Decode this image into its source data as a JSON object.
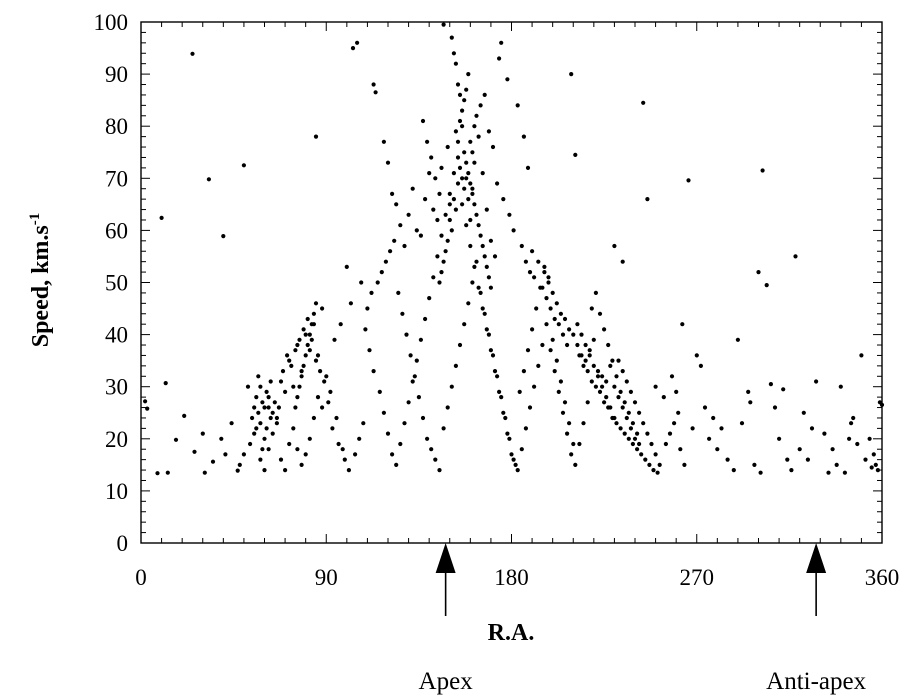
{
  "chart_data": {
    "type": "scatter",
    "xlabel": "R.A.",
    "ylabel": "Speed, km.s",
    "ylabel_superscript": "-1",
    "xlim": [
      0,
      360
    ],
    "ylim": [
      0,
      100
    ],
    "xticks": [
      0,
      90,
      180,
      270,
      360
    ],
    "yticks": [
      0,
      10,
      20,
      30,
      40,
      50,
      60,
      70,
      80,
      90,
      100
    ],
    "grid": false,
    "annotations": [
      {
        "label": "Apex",
        "x": 148
      },
      {
        "label": "Anti-apex",
        "x": 328
      }
    ],
    "points": [
      [
        25,
        93.9
      ],
      [
        10,
        62.4
      ],
      [
        12,
        30.7
      ],
      [
        33,
        69.8
      ],
      [
        40,
        58.9
      ],
      [
        50,
        72.5
      ],
      [
        2,
        27.2
      ],
      [
        3,
        25.8
      ],
      [
        8,
        13.4
      ],
      [
        13,
        13.5
      ],
      [
        17,
        19.8
      ],
      [
        21,
        24.4
      ],
      [
        26,
        17.5
      ],
      [
        30,
        21
      ],
      [
        31,
        13.5
      ],
      [
        35,
        15.6
      ],
      [
        39,
        20
      ],
      [
        41,
        17
      ],
      [
        44,
        23
      ],
      [
        47,
        13.9
      ],
      [
        52,
        30
      ],
      [
        55,
        21
      ],
      [
        58,
        23
      ],
      [
        60,
        26
      ],
      [
        62,
        28
      ],
      [
        64,
        25
      ],
      [
        66,
        24
      ],
      [
        68,
        31
      ],
      [
        70,
        29
      ],
      [
        72,
        35
      ],
      [
        74,
        30
      ],
      [
        76,
        38
      ],
      [
        78,
        33
      ],
      [
        80,
        40
      ],
      [
        82,
        37
      ],
      [
        84,
        42
      ],
      [
        86,
        36
      ],
      [
        88,
        45
      ],
      [
        90,
        32
      ],
      [
        92,
        29
      ],
      [
        95,
        24
      ],
      [
        98,
        18
      ],
      [
        100,
        53
      ],
      [
        103,
        95
      ],
      [
        105,
        96
      ],
      [
        85,
        78
      ],
      [
        113,
        88
      ],
      [
        114,
        86.5
      ],
      [
        118,
        77
      ],
      [
        120,
        73
      ],
      [
        122,
        67
      ],
      [
        124,
        65
      ],
      [
        126,
        61
      ],
      [
        128,
        57
      ],
      [
        130,
        63
      ],
      [
        132,
        68
      ],
      [
        134,
        60
      ],
      [
        136,
        59
      ],
      [
        138,
        66
      ],
      [
        140,
        71
      ],
      [
        142,
        64
      ],
      [
        144,
        62
      ],
      [
        146,
        72
      ],
      [
        147,
        99.5
      ],
      [
        150,
        65
      ],
      [
        151,
        97
      ],
      [
        152,
        94
      ],
      [
        153,
        92
      ],
      [
        154,
        88
      ],
      [
        155,
        86
      ],
      [
        156,
        80
      ],
      [
        157,
        75
      ],
      [
        158,
        70
      ],
      [
        159,
        66
      ],
      [
        160,
        62
      ],
      [
        161,
        68
      ],
      [
        162,
        73
      ],
      [
        164,
        78
      ],
      [
        166,
        71
      ],
      [
        168,
        64
      ],
      [
        170,
        58
      ],
      [
        172,
        55
      ],
      [
        174,
        93
      ],
      [
        175,
        96
      ],
      [
        178,
        89
      ],
      [
        183,
        84
      ],
      [
        186,
        78
      ],
      [
        188,
        72
      ],
      [
        190,
        56
      ],
      [
        193,
        54
      ],
      [
        196,
        52
      ],
      [
        198,
        50
      ],
      [
        200,
        48
      ],
      [
        202,
        46
      ],
      [
        204,
        44
      ],
      [
        206,
        43
      ],
      [
        208,
        41
      ],
      [
        210,
        40
      ],
      [
        212,
        38
      ],
      [
        214,
        36
      ],
      [
        216,
        35
      ],
      [
        218,
        37
      ],
      [
        220,
        39
      ],
      [
        222,
        33
      ],
      [
        224,
        32
      ],
      [
        226,
        31
      ],
      [
        228,
        34
      ],
      [
        230,
        30
      ],
      [
        232,
        28
      ],
      [
        234,
        26
      ],
      [
        236,
        24
      ],
      [
        238,
        22
      ],
      [
        240,
        20
      ],
      [
        242,
        19
      ],
      [
        244,
        84.5
      ],
      [
        246,
        66
      ],
      [
        211,
        74.5
      ],
      [
        209,
        90
      ],
      [
        230,
        57
      ],
      [
        234,
        54
      ],
      [
        250,
        30
      ],
      [
        254,
        28
      ],
      [
        258,
        32
      ],
      [
        260,
        29
      ],
      [
        263,
        42
      ],
      [
        266,
        69.6
      ],
      [
        270,
        36
      ],
      [
        272,
        34
      ],
      [
        276,
        20
      ],
      [
        280,
        18
      ],
      [
        285,
        16
      ],
      [
        290,
        39
      ],
      [
        295,
        29
      ],
      [
        300,
        52
      ],
      [
        302,
        71.5
      ],
      [
        304,
        49.5
      ],
      [
        306,
        30.5
      ],
      [
        308,
        26
      ],
      [
        312,
        29.5
      ],
      [
        318,
        55
      ],
      [
        320,
        18
      ],
      [
        324,
        16
      ],
      [
        328,
        31
      ],
      [
        332,
        21
      ],
      [
        336,
        18
      ],
      [
        340,
        30
      ],
      [
        342,
        13.5
      ],
      [
        345,
        23
      ],
      [
        348,
        19
      ],
      [
        350,
        36
      ],
      [
        354,
        20
      ],
      [
        356,
        17
      ],
      [
        357,
        15
      ],
      [
        359,
        27
      ],
      [
        355,
        14.5
      ],
      [
        360,
        26.5
      ],
      [
        137,
        81
      ],
      [
        139,
        77
      ],
      [
        141,
        74
      ],
      [
        143,
        70
      ],
      [
        145,
        67
      ],
      [
        149,
        76
      ],
      [
        163,
        82
      ],
      [
        165,
        84
      ],
      [
        167,
        86
      ],
      [
        169,
        79
      ],
      [
        171,
        76
      ],
      [
        173,
        69
      ],
      [
        176,
        66
      ],
      [
        179,
        63
      ],
      [
        181,
        60
      ],
      [
        185,
        57
      ],
      [
        187,
        54
      ],
      [
        189,
        52
      ],
      [
        191,
        51
      ],
      [
        195,
        49
      ],
      [
        197,
        47
      ],
      [
        199,
        45
      ],
      [
        201,
        43
      ],
      [
        203,
        42
      ],
      [
        205,
        40
      ],
      [
        207,
        38
      ],
      [
        213,
        36
      ],
      [
        215,
        34
      ],
      [
        217,
        33
      ],
      [
        219,
        31
      ],
      [
        221,
        30
      ],
      [
        223,
        29
      ],
      [
        225,
        27
      ],
      [
        227,
        26
      ],
      [
        229,
        24
      ],
      [
        231,
        23
      ],
      [
        233,
        22
      ],
      [
        235,
        21
      ],
      [
        237,
        20
      ],
      [
        239,
        19
      ],
      [
        241,
        18
      ],
      [
        243,
        17
      ],
      [
        245,
        16
      ],
      [
        247,
        15
      ],
      [
        249,
        14
      ],
      [
        251,
        13.5
      ],
      [
        255,
        19
      ],
      [
        257,
        21
      ],
      [
        259,
        23
      ],
      [
        261,
        25
      ],
      [
        262,
        18
      ],
      [
        264,
        15
      ],
      [
        268,
        22
      ],
      [
        274,
        26
      ],
      [
        278,
        24
      ],
      [
        282,
        22
      ],
      [
        288,
        14
      ],
      [
        292,
        23
      ],
      [
        296,
        27
      ],
      [
        298,
        15
      ],
      [
        301,
        13.5
      ],
      [
        310,
        20
      ],
      [
        314,
        16
      ],
      [
        316,
        14
      ],
      [
        322,
        25
      ],
      [
        326,
        22
      ],
      [
        334,
        13.5
      ],
      [
        338,
        15
      ],
      [
        344,
        20
      ],
      [
        346,
        24
      ],
      [
        352,
        16
      ],
      [
        358,
        14
      ],
      [
        110,
        45
      ],
      [
        112,
        48
      ],
      [
        115,
        50
      ],
      [
        117,
        52
      ],
      [
        119,
        54
      ],
      [
        121,
        56
      ],
      [
        123,
        58
      ],
      [
        125,
        48
      ],
      [
        127,
        44
      ],
      [
        129,
        40
      ],
      [
        131,
        36
      ],
      [
        133,
        32
      ],
      [
        135,
        28
      ],
      [
        137,
        24
      ],
      [
        139,
        20
      ],
      [
        141,
        18
      ],
      [
        143,
        16
      ],
      [
        145,
        14
      ],
      [
        147,
        22
      ],
      [
        149,
        26
      ],
      [
        151,
        30
      ],
      [
        153,
        34
      ],
      [
        155,
        38
      ],
      [
        157,
        42
      ],
      [
        159,
        46
      ],
      [
        161,
        50
      ],
      [
        163,
        54
      ],
      [
        165,
        48
      ],
      [
        167,
        44
      ],
      [
        169,
        40
      ],
      [
        171,
        36
      ],
      [
        173,
        32
      ],
      [
        175,
        28
      ],
      [
        177,
        24
      ],
      [
        179,
        20
      ],
      [
        181,
        16
      ],
      [
        183,
        14
      ],
      [
        185,
        18
      ],
      [
        187,
        22
      ],
      [
        189,
        26
      ],
      [
        191,
        30
      ],
      [
        193,
        34
      ],
      [
        195,
        38
      ],
      [
        197,
        42
      ],
      [
        199,
        37
      ],
      [
        201,
        33
      ],
      [
        203,
        29
      ],
      [
        205,
        25
      ],
      [
        207,
        21
      ],
      [
        209,
        17
      ],
      [
        211,
        15
      ],
      [
        213,
        19
      ],
      [
        215,
        23
      ],
      [
        217,
        27
      ],
      [
        219,
        45
      ],
      [
        221,
        48
      ],
      [
        223,
        44
      ],
      [
        225,
        41
      ],
      [
        227,
        38
      ],
      [
        229,
        35
      ],
      [
        231,
        32
      ],
      [
        233,
        29
      ],
      [
        235,
        27
      ],
      [
        237,
        25
      ],
      [
        239,
        23
      ],
      [
        241,
        21
      ],
      [
        57,
        25
      ],
      [
        59,
        27
      ],
      [
        61,
        29
      ],
      [
        63,
        31
      ],
      [
        65,
        27
      ],
      [
        67,
        26
      ],
      [
        69,
        33
      ],
      [
        71,
        36
      ],
      [
        73,
        34
      ],
      [
        75,
        37
      ],
      [
        77,
        39
      ],
      [
        79,
        41
      ],
      [
        81,
        43
      ],
      [
        83,
        39
      ],
      [
        85,
        35
      ],
      [
        87,
        33
      ],
      [
        89,
        31
      ],
      [
        91,
        27
      ],
      [
        93,
        22
      ],
      [
        96,
        19
      ],
      [
        99,
        16
      ],
      [
        101,
        14
      ],
      [
        104,
        17
      ],
      [
        106,
        20
      ],
      [
        108,
        23
      ],
      [
        48,
        15
      ],
      [
        50,
        17
      ],
      [
        53,
        19
      ],
      [
        56,
        22
      ],
      [
        58,
        16
      ],
      [
        60,
        14
      ],
      [
        62,
        18
      ],
      [
        64,
        21
      ],
      [
        66,
        23
      ],
      [
        68,
        16
      ],
      [
        70,
        14
      ],
      [
        72,
        19
      ],
      [
        74,
        22
      ],
      [
        76,
        18
      ],
      [
        78,
        15
      ],
      [
        80,
        17
      ],
      [
        82,
        20
      ],
      [
        84,
        24
      ],
      [
        86,
        28
      ],
      [
        88,
        26
      ],
      [
        94,
        39
      ],
      [
        97,
        42
      ],
      [
        102,
        46
      ],
      [
        107,
        50
      ],
      [
        109,
        41
      ],
      [
        111,
        37
      ],
      [
        113,
        33
      ],
      [
        116,
        29
      ],
      [
        118,
        25
      ],
      [
        120,
        21
      ],
      [
        122,
        17
      ],
      [
        124,
        15
      ],
      [
        126,
        19
      ],
      [
        128,
        23
      ],
      [
        130,
        27
      ],
      [
        132,
        31
      ],
      [
        134,
        35
      ],
      [
        136,
        39
      ],
      [
        138,
        43
      ],
      [
        140,
        47
      ],
      [
        142,
        51
      ],
      [
        144,
        55
      ],
      [
        146,
        59
      ],
      [
        148,
        63
      ],
      [
        150,
        67
      ],
      [
        152,
        71
      ],
      [
        154,
        69
      ],
      [
        156,
        65
      ],
      [
        158,
        61
      ],
      [
        160,
        57
      ],
      [
        162,
        53
      ],
      [
        164,
        49
      ],
      [
        166,
        45
      ],
      [
        168,
        41
      ],
      [
        170,
        37
      ],
      [
        172,
        33
      ],
      [
        174,
        29
      ],
      [
        176,
        25
      ],
      [
        178,
        21
      ],
      [
        180,
        17
      ],
      [
        182,
        15
      ],
      [
        184,
        29
      ],
      [
        186,
        33
      ],
      [
        188,
        37
      ],
      [
        190,
        41
      ],
      [
        192,
        45
      ],
      [
        194,
        49
      ],
      [
        196,
        53
      ],
      [
        198,
        51
      ],
      [
        200,
        39
      ],
      [
        202,
        35
      ],
      [
        204,
        31
      ],
      [
        206,
        27
      ],
      [
        208,
        23
      ],
      [
        210,
        19
      ],
      [
        212,
        42
      ],
      [
        214,
        40
      ],
      [
        216,
        38
      ],
      [
        218,
        36
      ],
      [
        220,
        34
      ],
      [
        222,
        32
      ],
      [
        224,
        30
      ],
      [
        226,
        28
      ],
      [
        228,
        26
      ],
      [
        230,
        24
      ],
      [
        232,
        35
      ],
      [
        234,
        33
      ],
      [
        236,
        31
      ],
      [
        238,
        29
      ],
      [
        240,
        27
      ],
      [
        242,
        25
      ],
      [
        244,
        23
      ],
      [
        246,
        21
      ],
      [
        248,
        19
      ],
      [
        250,
        17
      ],
      [
        252,
        15
      ],
      [
        154,
        74
      ],
      [
        155,
        72
      ],
      [
        156,
        70
      ],
      [
        157,
        68
      ],
      [
        158,
        73
      ],
      [
        159,
        71
      ],
      [
        160,
        69
      ],
      [
        161,
        67
      ],
      [
        152,
        66
      ],
      [
        153,
        64
      ],
      [
        150,
        62
      ],
      [
        151,
        60
      ],
      [
        149,
        58
      ],
      [
        148,
        56
      ],
      [
        147,
        54
      ],
      [
        146,
        52
      ],
      [
        145,
        50
      ],
      [
        162,
        65
      ],
      [
        163,
        63
      ],
      [
        164,
        61
      ],
      [
        165,
        59
      ],
      [
        166,
        57
      ],
      [
        167,
        55
      ],
      [
        168,
        53
      ],
      [
        169,
        51
      ],
      [
        170,
        49
      ],
      [
        155,
        81
      ],
      [
        156,
        83
      ],
      [
        157,
        85
      ],
      [
        158,
        87
      ],
      [
        159,
        90
      ],
      [
        153,
        79
      ],
      [
        154,
        77
      ],
      [
        160,
        77
      ],
      [
        161,
        75
      ],
      [
        162,
        80
      ],
      [
        80,
        36
      ],
      [
        81,
        38
      ],
      [
        82,
        40
      ],
      [
        83,
        42
      ],
      [
        84,
        44
      ],
      [
        85,
        46
      ],
      [
        79,
        34
      ],
      [
        78,
        32
      ],
      [
        77,
        30
      ],
      [
        76,
        28
      ],
      [
        75,
        26
      ],
      [
        63,
        24
      ],
      [
        62,
        26
      ],
      [
        61,
        22
      ],
      [
        60,
        20
      ],
      [
        59,
        18
      ],
      [
        58,
        30
      ],
      [
        57,
        32
      ],
      [
        56,
        28
      ],
      [
        55,
        26
      ],
      [
        54,
        24
      ]
    ]
  }
}
